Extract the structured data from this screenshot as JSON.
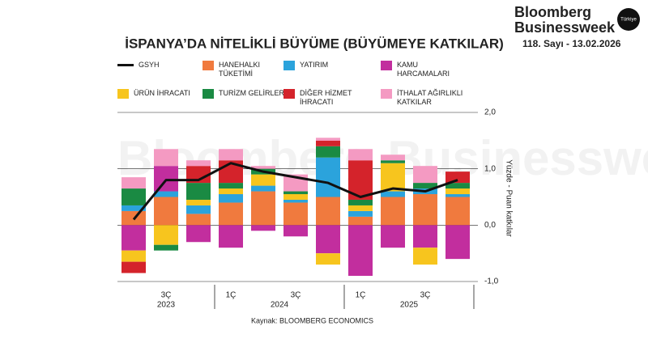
{
  "header": {
    "brand_line1": "Bloomberg",
    "brand_line2": "Businessweek",
    "edition": "Türkiye",
    "issue": "118. Sayı - 13.02.2026",
    "watermark": "Bloomberg Businessweek"
  },
  "chart_data": {
    "type": "stacked-bar-line",
    "title": "İSPANYA’DA NİTELİKLİ BÜYÜME (BÜYÜMEYE KATKILAR)",
    "source": "Kaynak: BLOOMBERG ECONOMICS",
    "y_axis_label": "Yüzde - Puan katkılar",
    "categories": [
      null,
      "3Ç",
      null,
      "1Ç",
      null,
      "3Ç",
      null,
      "1Ç",
      null,
      "3Ç",
      null
    ],
    "year_groups": [
      {
        "label": "2023",
        "count": 3
      },
      {
        "label": "2024",
        "count": 4
      },
      {
        "label": "2025",
        "count": 4
      }
    ],
    "ylim": [
      -1,
      2
    ],
    "yticks": [
      {
        "value": 2,
        "label": "2,0"
      },
      {
        "value": 1,
        "label": "1,0"
      },
      {
        "value": 0,
        "label": "0,0"
      },
      {
        "value": -1,
        "label": "-1,0"
      }
    ],
    "line": {
      "name": "GSYH",
      "color": "#111111",
      "values": [
        0.1,
        0.8,
        0.8,
        1.1,
        0.95,
        0.85,
        0.75,
        0.5,
        0.65,
        0.6,
        0.8
      ]
    },
    "series": [
      {
        "name": "HANEHALKI TÜKETİMİ",
        "color": "#f07a3e",
        "values": [
          0.25,
          0.5,
          0.2,
          0.4,
          0.6,
          0.4,
          0.5,
          0.15,
          0.5,
          0.55,
          0.5
        ]
      },
      {
        "name": "YATIRIM",
        "color": "#2ba3dc",
        "values": [
          0.1,
          0.1,
          0.15,
          0.15,
          0.1,
          0.05,
          0.7,
          0.1,
          0.1,
          0.1,
          0.05
        ]
      },
      {
        "name": "KAMU HARCAMALARI",
        "color": "#c22e9e",
        "values": [
          -0.45,
          0.45,
          -0.3,
          -0.4,
          -0.1,
          -0.2,
          -0.5,
          -0.9,
          -0.4,
          -0.4,
          -0.6
        ]
      },
      {
        "name": "ÜRÜN İHRACATI",
        "color": "#f7c51e",
        "values": [
          -0.2,
          -0.35,
          0.1,
          0.1,
          0.2,
          0.1,
          -0.2,
          0.1,
          0.5,
          -0.3,
          0.1
        ]
      },
      {
        "name": "TURİZM GELİRLERİ",
        "color": "#1a8a43",
        "values": [
          0.3,
          -0.1,
          0.3,
          0.1,
          0.1,
          0.05,
          0.2,
          0.1,
          0.05,
          0.1,
          0.1
        ]
      },
      {
        "name": "DİĞER HİZMET İHRACATI",
        "color": "#d4232b",
        "values": [
          -0.2,
          0,
          0.3,
          0.4,
          0,
          0,
          0.1,
          0.7,
          0,
          0,
          0.2
        ]
      },
      {
        "name": "İTHALAT AĞIRLIKLI KATKILAR",
        "color": "#f49ac2",
        "values": [
          0.2,
          0.3,
          0.1,
          0.2,
          0.05,
          0.3,
          0.05,
          0.2,
          0.1,
          0.3,
          0
        ]
      }
    ]
  }
}
